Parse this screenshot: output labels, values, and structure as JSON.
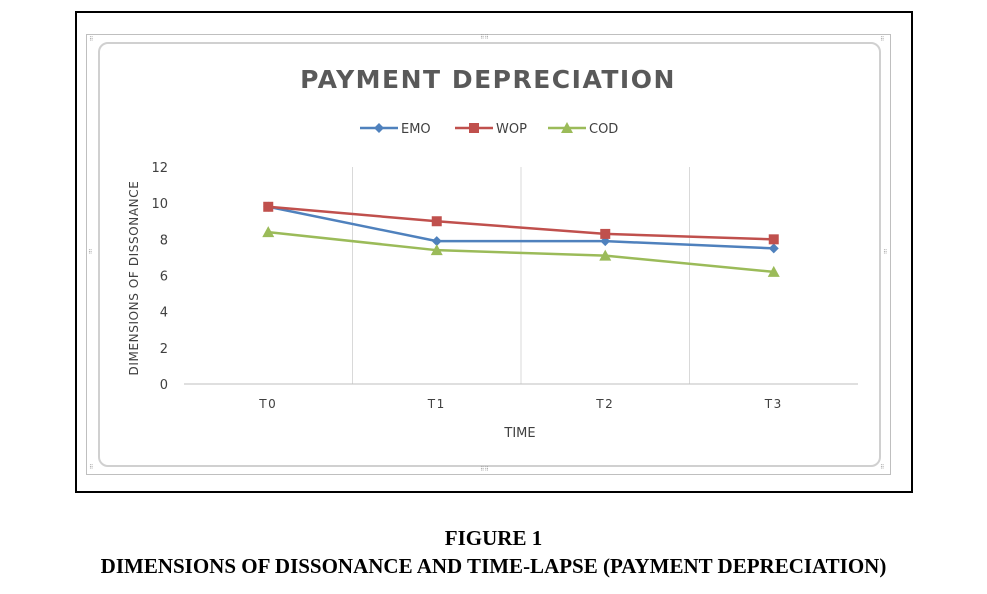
{
  "figure": {
    "label": "FIGURE 1",
    "caption": "DIMENSIONS OF DISSONANCE AND TIME-LAPSE (PAYMENT DEPRECIATION)"
  },
  "chart_data": {
    "type": "line",
    "title": "PAYMENT DEPRECIATION",
    "xlabel": "TIME",
    "ylabel": "DIMENSIONS OF DISSONANCE",
    "categories": [
      "T0",
      "T1",
      "T2",
      "T3"
    ],
    "ylim": [
      0,
      12
    ],
    "yticks": [
      "0",
      "2",
      "4",
      "6",
      "8",
      "10",
      "12"
    ],
    "grid": "vertical",
    "legend_position": "top",
    "series": [
      {
        "name": "EMO",
        "values": [
          9.8,
          7.9,
          7.9,
          7.5
        ],
        "color": "#4f81bd",
        "marker": "diamond"
      },
      {
        "name": "WOP",
        "values": [
          9.8,
          9.0,
          8.3,
          8.0
        ],
        "color": "#c0504d",
        "marker": "square"
      },
      {
        "name": "COD",
        "values": [
          8.4,
          7.4,
          7.1,
          6.2
        ],
        "color": "#9bbb59",
        "marker": "triangle"
      }
    ]
  }
}
